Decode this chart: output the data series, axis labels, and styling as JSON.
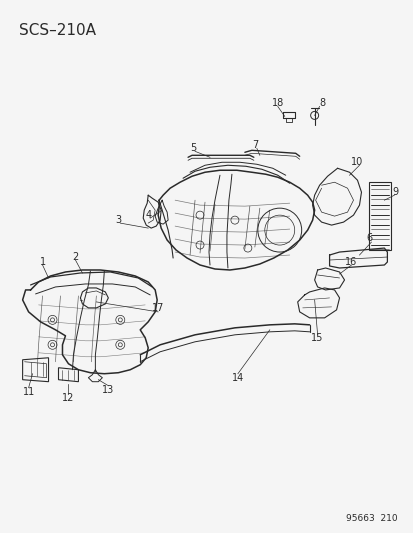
{
  "title": "SCS–210A",
  "footer": "95663  210",
  "bg_color": "#f5f5f5",
  "line_color": "#2a2a2a",
  "title_fontsize": 11,
  "footer_fontsize": 6.5,
  "label_fontsize": 7,
  "figsize": [
    4.14,
    5.33
  ],
  "dpi": 100
}
